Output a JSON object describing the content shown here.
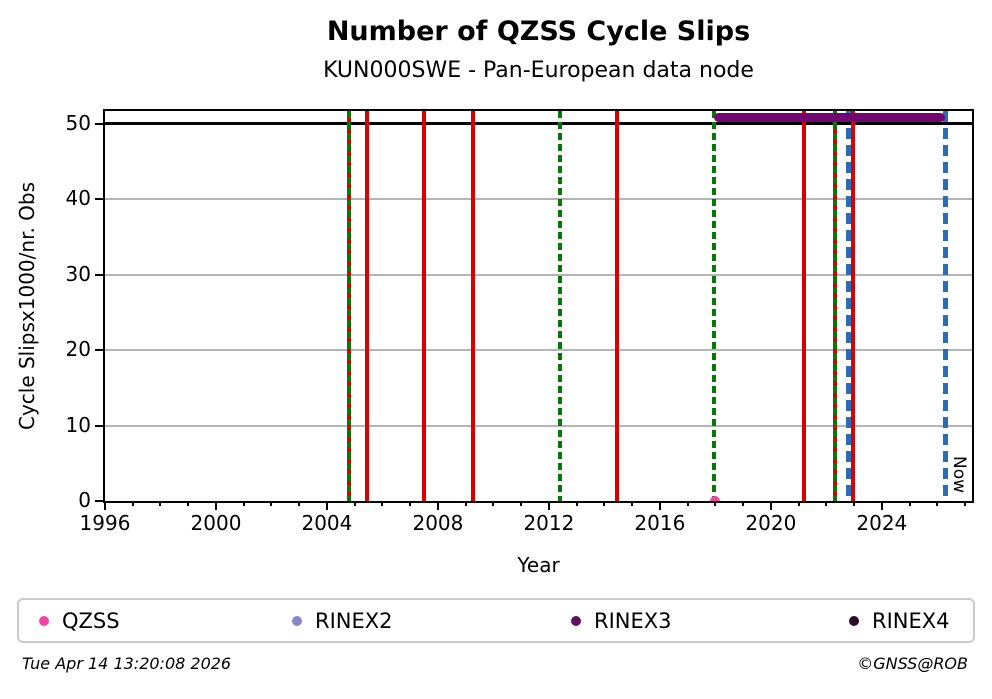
{
  "title": "Number of QZSS Cycle Slips",
  "subtitle": "KUN000SWE - Pan-European data node",
  "footer": {
    "timestamp": "Tue Apr 14 13:20:08 2026",
    "credit": "©GNSS@ROB"
  },
  "legend": {
    "items": [
      {
        "label": "QZSS",
        "color": "#ef47a3"
      },
      {
        "label": "RINEX2",
        "color": "#8886c8"
      },
      {
        "label": "RINEX3",
        "color": "#5f0f5f"
      },
      {
        "label": "RINEX4",
        "color": "#2b0b2b"
      }
    ]
  },
  "chart_data": {
    "type": "line",
    "title": "Number of QZSS Cycle Slips",
    "subtitle": "KUN000SWE - Pan-European data node",
    "xlabel": "Year",
    "ylabel": "Cycle Slipsx1000/nr. Obs",
    "xlim": [
      1996,
      2027.25
    ],
    "ylim": [
      0,
      51.7
    ],
    "x_major_ticks": [
      1996,
      2000,
      2004,
      2008,
      2012,
      2016,
      2020,
      2024
    ],
    "x_minor_tick_interval": 1,
    "y_ticks": [
      0,
      10,
      20,
      30,
      40,
      50
    ],
    "h_gridlines": [
      10,
      20,
      30,
      40
    ],
    "h_line_y": 50,
    "grid_color": "#b5b5b5",
    "series": [
      {
        "name": "QZSS",
        "color": "#ef47a3",
        "marker": "dot",
        "points": [
          {
            "x": 2018.0,
            "y": 0.1
          }
        ]
      },
      {
        "name": "RINEX3",
        "color": "#730473",
        "marker": "thick-segment",
        "segment": {
          "x_start": 2017.95,
          "x_end": 2026.28,
          "y": 50.9
        }
      }
    ],
    "event_vlines": [
      {
        "year": 2004.8,
        "color": "#d80000",
        "style": "solid",
        "width": 4
      },
      {
        "year": 2005.45,
        "color": "#d80000",
        "style": "solid",
        "width": 4
      },
      {
        "year": 2007.5,
        "color": "#d80000",
        "style": "solid",
        "width": 4
      },
      {
        "year": 2009.25,
        "color": "#d80000",
        "style": "solid",
        "width": 4
      },
      {
        "year": 2014.45,
        "color": "#d80000",
        "style": "solid",
        "width": 4
      },
      {
        "year": 2021.2,
        "color": "#d80000",
        "style": "solid",
        "width": 4
      },
      {
        "year": 2022.3,
        "color": "#d80000",
        "style": "solid",
        "width": 4
      },
      {
        "year": 2022.95,
        "color": "#d80000",
        "style": "solid",
        "width": 4
      },
      {
        "year": 2004.8,
        "color": "#077807",
        "style": "dashed",
        "width": 4
      },
      {
        "year": 2012.4,
        "color": "#077807",
        "style": "dashed",
        "width": 4
      },
      {
        "year": 2017.95,
        "color": "#077807",
        "style": "dashed",
        "width": 4
      },
      {
        "year": 2022.3,
        "color": "#077807",
        "style": "dashed",
        "width": 4
      },
      {
        "year": 2022.8,
        "color": "#2a6cb5",
        "style": "dashed",
        "width": 5
      }
    ],
    "now_marker": {
      "year": 2026.28,
      "label": "Now",
      "color": "#2a6cb5",
      "style": "dashed",
      "width": 5
    },
    "legend_entries": [
      "QZSS",
      "RINEX2",
      "RINEX3",
      "RINEX4"
    ],
    "legend_position": "bottom"
  }
}
